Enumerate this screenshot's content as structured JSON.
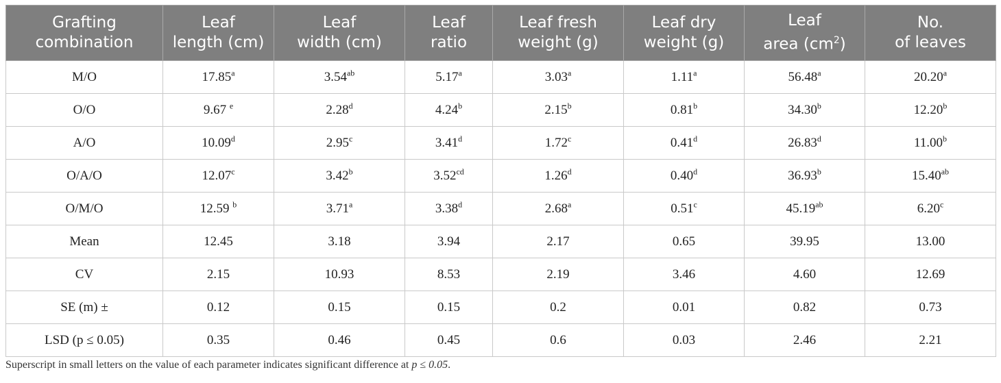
{
  "table": {
    "headers": [
      {
        "line1": "Grafting",
        "line2": "combination",
        "sup": ""
      },
      {
        "line1": "Leaf",
        "line2": "length (cm)",
        "sup": ""
      },
      {
        "line1": "Leaf",
        "line2": "width (cm)",
        "sup": ""
      },
      {
        "line1": "Leaf",
        "line2": "ratio",
        "sup": ""
      },
      {
        "line1": "Leaf fresh",
        "line2": "weight (g)",
        "sup": ""
      },
      {
        "line1": "Leaf dry",
        "line2": "weight (g)",
        "sup": ""
      },
      {
        "line1": "Leaf",
        "line2": "area (cm",
        "sup": "2",
        "suffix": ")"
      },
      {
        "line1": "No.",
        "line2": "of leaves",
        "sup": ""
      }
    ],
    "rows": [
      {
        "name": "M/O",
        "cells": [
          {
            "v": "17.85",
            "s": "a"
          },
          {
            "v": "3.54",
            "s": "ab"
          },
          {
            "v": "5.17",
            "s": "a"
          },
          {
            "v": "3.03",
            "s": "a"
          },
          {
            "v": "1.11",
            "s": "a"
          },
          {
            "v": "56.48",
            "s": "a"
          },
          {
            "v": "20.20",
            "s": "a"
          }
        ]
      },
      {
        "name": "O/O",
        "cells": [
          {
            "v": "9.67 ",
            "s": "e"
          },
          {
            "v": "2.28",
            "s": "d"
          },
          {
            "v": "4.24",
            "s": "b"
          },
          {
            "v": "2.15",
            "s": "b"
          },
          {
            "v": "0.81",
            "s": "b"
          },
          {
            "v": "34.30",
            "s": "b"
          },
          {
            "v": "12.20",
            "s": "b"
          }
        ]
      },
      {
        "name": "A/O",
        "cells": [
          {
            "v": "10.09",
            "s": "d"
          },
          {
            "v": "2.95",
            "s": "c"
          },
          {
            "v": "3.41",
            "s": "d"
          },
          {
            "v": "1.72",
            "s": "c"
          },
          {
            "v": "0.41",
            "s": "d"
          },
          {
            "v": "26.83",
            "s": "d"
          },
          {
            "v": "11.00",
            "s": "b"
          }
        ]
      },
      {
        "name": "O/A/O",
        "cells": [
          {
            "v": "12.07",
            "s": "c"
          },
          {
            "v": "3.42",
            "s": "b"
          },
          {
            "v": "3.52",
            "s": "cd"
          },
          {
            "v": "1.26",
            "s": "d"
          },
          {
            "v": "0.40",
            "s": "d"
          },
          {
            "v": "36.93",
            "s": "b"
          },
          {
            "v": "15.40",
            "s": "ab"
          }
        ]
      },
      {
        "name": "O/M/O",
        "cells": [
          {
            "v": "12.59 ",
            "s": "b"
          },
          {
            "v": "3.71",
            "s": "a"
          },
          {
            "v": "3.38",
            "s": "d"
          },
          {
            "v": "2.68",
            "s": "a"
          },
          {
            "v": "0.51",
            "s": "c"
          },
          {
            "v": "45.19",
            "s": "ab"
          },
          {
            "v": "6.20",
            "s": "c"
          }
        ]
      },
      {
        "name": "Mean",
        "cells": [
          {
            "v": "12.45",
            "s": ""
          },
          {
            "v": "3.18",
            "s": ""
          },
          {
            "v": "3.94",
            "s": ""
          },
          {
            "v": "2.17",
            "s": ""
          },
          {
            "v": "0.65",
            "s": ""
          },
          {
            "v": "39.95",
            "s": ""
          },
          {
            "v": "13.00",
            "s": ""
          }
        ]
      },
      {
        "name": "CV",
        "cells": [
          {
            "v": "2.15",
            "s": ""
          },
          {
            "v": "10.93",
            "s": ""
          },
          {
            "v": "8.53",
            "s": ""
          },
          {
            "v": "2.19",
            "s": ""
          },
          {
            "v": "3.46",
            "s": ""
          },
          {
            "v": "4.60",
            "s": ""
          },
          {
            "v": "12.69",
            "s": ""
          }
        ]
      },
      {
        "name": "SE (m) ±",
        "cells": [
          {
            "v": "0.12",
            "s": ""
          },
          {
            "v": "0.15",
            "s": ""
          },
          {
            "v": "0.15",
            "s": ""
          },
          {
            "v": "0.2",
            "s": ""
          },
          {
            "v": "0.01",
            "s": ""
          },
          {
            "v": "0.82",
            "s": ""
          },
          {
            "v": "0.73",
            "s": ""
          }
        ]
      },
      {
        "name": "LSD (p ≤ 0.05)",
        "cells": [
          {
            "v": "0.35",
            "s": ""
          },
          {
            "v": "0.46",
            "s": ""
          },
          {
            "v": "0.45",
            "s": ""
          },
          {
            "v": "0.6",
            "s": ""
          },
          {
            "v": "0.03",
            "s": ""
          },
          {
            "v": "2.46",
            "s": ""
          },
          {
            "v": "2.21",
            "s": ""
          }
        ]
      }
    ]
  },
  "footnote": {
    "text": "Superscript in small letters on the value of each parameter indicates significant difference at ",
    "italic": "p ≤ 0.05",
    "end": "."
  },
  "colors": {
    "header_bg": "#7f7f7f",
    "header_text": "#ffffff",
    "border": "#c9c9c9"
  }
}
